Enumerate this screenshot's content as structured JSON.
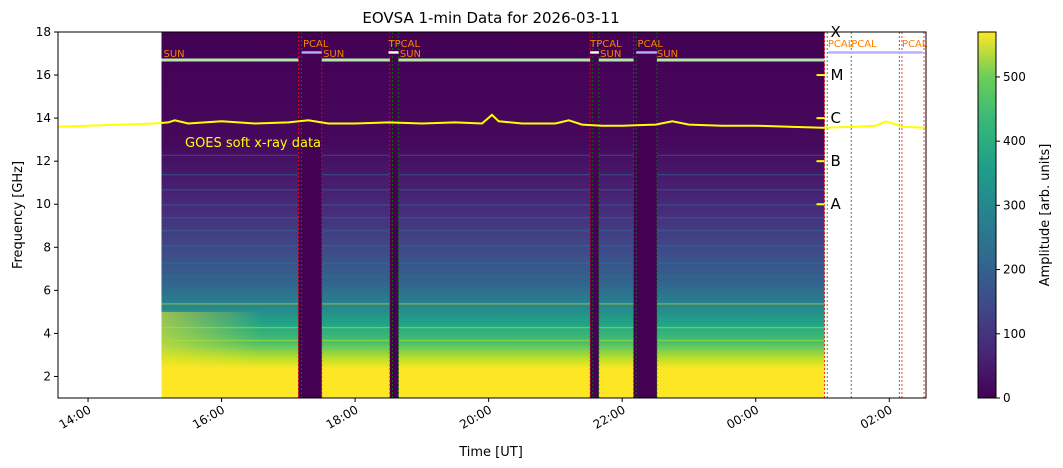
{
  "chart_data": {
    "type": "heatmap",
    "title": "EOVSA 1-min Data for 2026-03-11",
    "xlabel": "Time [UT]",
    "ylabel": "Frequency [GHz]",
    "x_ticks": [
      "14:00",
      "16:00",
      "18:00",
      "20:00",
      "22:00",
      "00:00",
      "02:00"
    ],
    "x_tick_hours": [
      14,
      16,
      18,
      20,
      22,
      24,
      26
    ],
    "xlim_hours": [
      13.55,
      26.55
    ],
    "ylim": [
      1,
      18
    ],
    "y_ticks": [
      2,
      4,
      6,
      8,
      10,
      12,
      14,
      16,
      18
    ],
    "colorbar": {
      "label": "Amplitude [arb. units]",
      "range": [
        0,
        570
      ],
      "ticks": [
        0,
        100,
        200,
        300,
        400,
        500
      ],
      "colormap": "viridis"
    },
    "data_span_hours": [
      15.1,
      25.03
    ],
    "calibration_gaps_hours": [
      [
        17.15,
        17.5
      ],
      [
        18.52,
        18.65
      ],
      [
        21.52,
        21.65
      ],
      [
        22.17,
        22.52
      ]
    ],
    "scan_labels": [
      {
        "text": "SUN",
        "hour": 15.13
      },
      {
        "text": "PCAL",
        "hour": 17.22
      },
      {
        "text": "SUN",
        "hour": 17.52
      },
      {
        "text": "TPCAL",
        "hour": 18.5
      },
      {
        "text": "SUN",
        "hour": 18.67
      },
      {
        "text": "TPCAL",
        "hour": 21.52
      },
      {
        "text": "SUN",
        "hour": 21.67
      },
      {
        "text": "PCAL",
        "hour": 22.23
      },
      {
        "text": "SUN",
        "hour": 22.52
      },
      {
        "text": "PCAL",
        "hour": 25.08
      },
      {
        "text": "PCAL",
        "hour": 25.43
      },
      {
        "text": "PCAL",
        "hour": 26.19
      }
    ],
    "goes_label": "GOES soft x-ray data",
    "goes_class_labels": [
      "X",
      "M",
      "C",
      "B",
      "A"
    ],
    "goes_class_freq": [
      18,
      16,
      14,
      12,
      10
    ],
    "goes_curve": {
      "hours": [
        13.55,
        14.0,
        14.5,
        15.0,
        15.2,
        15.3,
        15.5,
        16.0,
        16.5,
        17.0,
        17.3,
        17.6,
        18.0,
        18.5,
        19.0,
        19.5,
        19.9,
        20.05,
        20.15,
        20.5,
        21.0,
        21.2,
        21.4,
        21.7,
        22.0,
        22.5,
        22.75,
        23.0,
        23.5,
        24.0,
        24.5,
        25.0,
        25.5,
        25.8,
        25.95,
        26.2,
        26.55
      ],
      "freq": [
        13.6,
        13.65,
        13.7,
        13.75,
        13.8,
        13.9,
        13.75,
        13.85,
        13.75,
        13.8,
        13.9,
        13.75,
        13.75,
        13.8,
        13.75,
        13.8,
        13.75,
        14.15,
        13.85,
        13.75,
        13.75,
        13.9,
        13.7,
        13.65,
        13.65,
        13.7,
        13.85,
        13.7,
        13.65,
        13.65,
        13.6,
        13.55,
        13.6,
        13.65,
        13.85,
        13.6,
        13.55
      ]
    },
    "colors": {
      "goes_curve": "#ffff00",
      "scan_label": "#ff8000",
      "sun_bar": "#b5e8a8",
      "pcal_bar": "#b0b0ff",
      "marker_red": "#ff0000",
      "marker_green": "#008000"
    }
  }
}
